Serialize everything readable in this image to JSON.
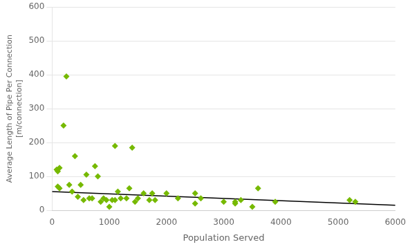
{
  "chart_data": {
    "type": "scatter",
    "xlabel": "Population Served",
    "ylabel": "Average Length of Pipe Per Connection\n[m/connection]",
    "xlim": [
      0,
      6000
    ],
    "ylim": [
      0,
      600
    ],
    "xticks": [
      0,
      1000,
      2000,
      3000,
      4000,
      5000,
      6000
    ],
    "yticks": [
      0,
      100,
      200,
      300,
      400,
      500,
      600
    ],
    "grid": "y",
    "series": [
      {
        "type": "scatter",
        "color": "#76b900",
        "marker": "diamond",
        "x": [
          80,
          100,
          100,
          130,
          130,
          200,
          250,
          300,
          350,
          400,
          450,
          500,
          550,
          600,
          650,
          700,
          750,
          800,
          850,
          900,
          950,
          1000,
          1050,
          1100,
          1100,
          1150,
          1200,
          1300,
          1350,
          1400,
          1450,
          1500,
          1600,
          1700,
          1750,
          1800,
          2000,
          2200,
          2500,
          2500,
          2600,
          3000,
          3200,
          3200,
          3300,
          3500,
          3600,
          3900,
          5200,
          5300
        ],
        "values": [
          120,
          115,
          70,
          125,
          65,
          250,
          395,
          75,
          55,
          160,
          40,
          75,
          30,
          105,
          35,
          35,
          130,
          100,
          25,
          35,
          30,
          10,
          30,
          30,
          190,
          55,
          35,
          35,
          65,
          185,
          25,
          35,
          50,
          30,
          50,
          30,
          50,
          35,
          20,
          50,
          35,
          25,
          25,
          20,
          30,
          10,
          65,
          25,
          30,
          25
        ]
      },
      {
        "type": "line",
        "color": "#000000",
        "line_style": "solid",
        "x": [
          0,
          6000
        ],
        "values": [
          55,
          15
        ]
      }
    ]
  }
}
